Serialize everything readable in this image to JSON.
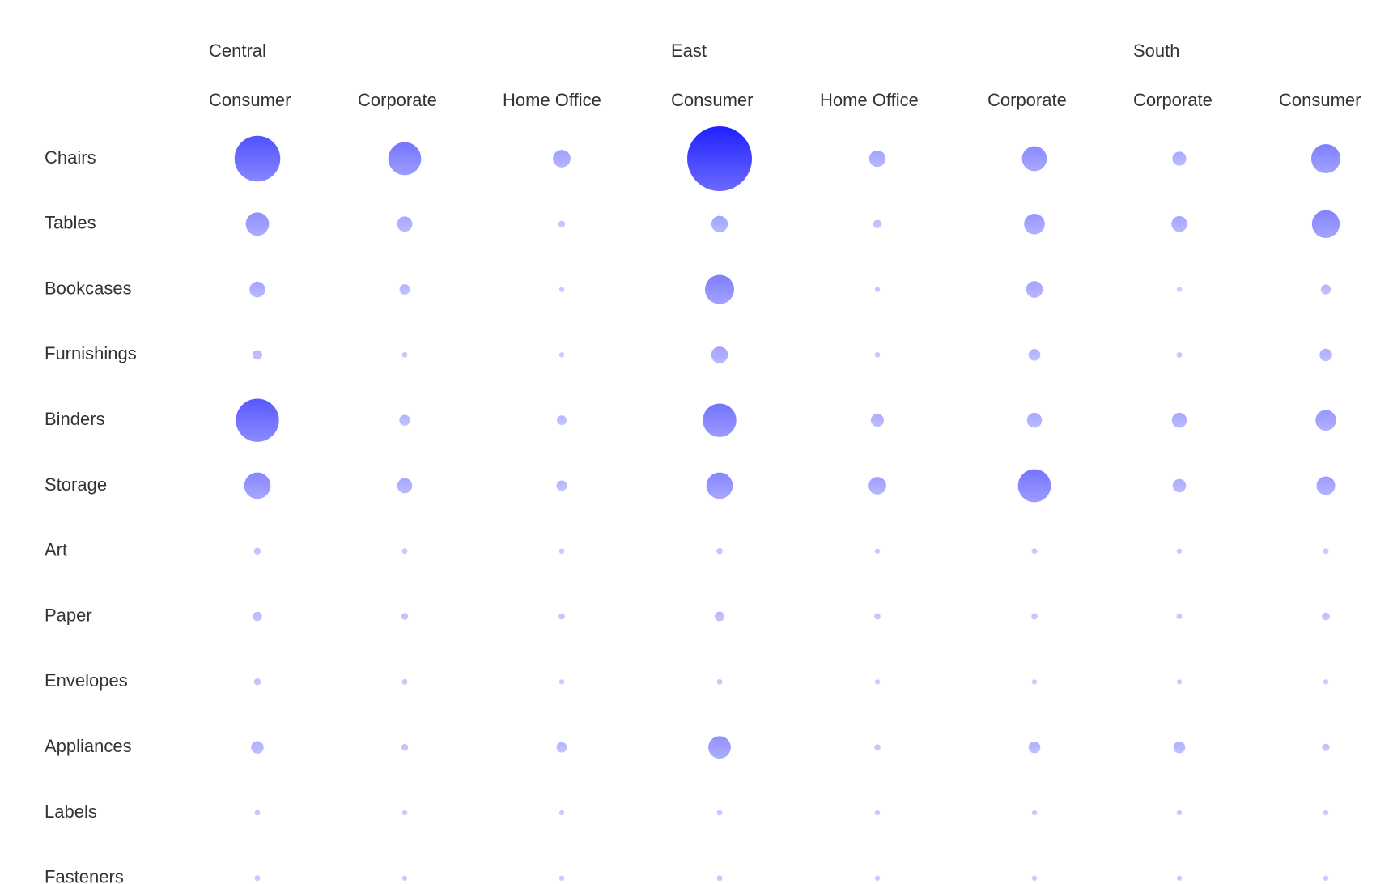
{
  "chart_data": {
    "type": "bubble-matrix",
    "column_groups": [
      {
        "region": "Central",
        "segments": [
          "Consumer",
          "Corporate",
          "Home Office"
        ]
      },
      {
        "region": "East",
        "segments": [
          "Consumer",
          "Home Office",
          "Corporate"
        ]
      },
      {
        "region": "South",
        "segments": [
          "Corporate",
          "Consumer"
        ]
      }
    ],
    "rows": [
      "Chairs",
      "Tables",
      "Bookcases",
      "Furnishings",
      "Binders",
      "Storage",
      "Art",
      "Paper",
      "Envelopes",
      "Appliances",
      "Labels",
      "Fasteners"
    ],
    "values": [
      [
        27,
        14,
        4,
        54,
        3.5,
        8,
        2.5,
        11
      ],
      [
        7,
        3,
        0.6,
        3.5,
        0.9,
        5.5,
        3.2,
        10
      ],
      [
        3.2,
        1.4,
        0.3,
        11,
        0.3,
        3.6,
        0.2,
        1.3
      ],
      [
        1.2,
        0.4,
        0.3,
        3.6,
        0.4,
        1.8,
        0.4,
        2
      ],
      [
        24,
        1.5,
        1.2,
        14.5,
        2.2,
        2.9,
        2.9,
        5.5
      ],
      [
        9,
        2.9,
        1.4,
        9,
        4,
        14,
        2.3,
        4.5
      ],
      [
        0.6,
        0.4,
        0.3,
        0.5,
        0.3,
        0.4,
        0.3,
        0.4
      ],
      [
        1.1,
        0.6,
        0.5,
        1.2,
        0.5,
        0.5,
        0.4,
        0.8
      ],
      [
        0.6,
        0.4,
        0.3,
        0.4,
        0.3,
        0.3,
        0.3,
        0.3
      ],
      [
        2,
        0.6,
        1.4,
        6.5,
        0.5,
        1.8,
        1.8,
        0.7
      ],
      [
        0.4,
        0.3,
        0.3,
        0.4,
        0.3,
        0.3,
        0.3,
        0.3
      ],
      [
        0.4,
        0.3,
        0.3,
        0.4,
        0.3,
        0.3,
        0.3,
        0.3
      ]
    ],
    "colors": {
      "bubble_dark": "#2020ff",
      "bubble_light": "#d8d8ff",
      "text": "#333333"
    }
  }
}
